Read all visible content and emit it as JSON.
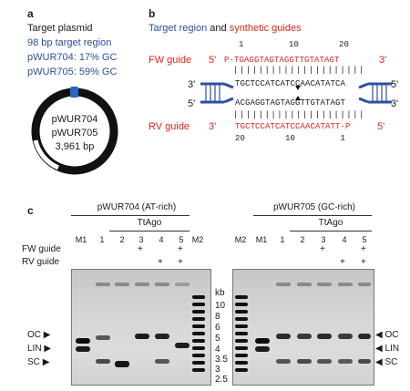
{
  "panel_a": {
    "label": "a",
    "title": "Target plasmid",
    "target_region": "98 bp target region",
    "gc_1": "pWUR704: 17% GC",
    "gc_2": "pWUR705: 59% GC",
    "plasmid_name_1": "pWUR704",
    "plasmid_name_2": "pWUR705",
    "plasmid_size": "3,961 bp"
  },
  "panel_b": {
    "label": "b",
    "title_part1": "Target region",
    "title_and": " and ",
    "title_part2": "synthetic guides",
    "fw_guide_label": "FW guide",
    "rv_guide_label": "RV guide",
    "fw_5prime": "5'",
    "fw_3prime": "3'",
    "rv_3prime": "3'",
    "rv_5prime": "5'",
    "target_left_3prime": "3'",
    "target_left_5prime": "5'",
    "target_right_5prime": "5'",
    "target_right_3prime": "3'",
    "fw_ticks_top": "1         10        20",
    "fw_seq": "P-TGAGGTAGTAGGTTGTATAGT",
    "fw_bars": "|||||||||||||||||||||",
    "target_top": "TGCTCCATCATCCAACATATCA",
    "target_bottom": "ACGAGGTAGTAGGTTGTATAGT",
    "rv_bars": "|||||||||||||||||||||",
    "rv_seq": "TGCTCCATCATCCAACATATT-P",
    "rv_ticks_bottom": "20        10         1"
  },
  "panel_c": {
    "label": "c",
    "gel_left": {
      "title": "pWUR704 (AT-rich)",
      "tt_ago": "TtAgo",
      "lanes": [
        "M1",
        "1",
        "2",
        "3",
        "4",
        "5",
        "M2"
      ]
    },
    "gel_right": {
      "title": "pWUR705 (GC-rich)",
      "tt_ago": "TtAgo",
      "lanes": [
        "M2",
        "M1",
        "1",
        "2",
        "3",
        "4",
        "5"
      ]
    },
    "fw_guide_row_label": "FW guide",
    "rv_guide_row_label": "RV guide",
    "plus": "+",
    "kb_label": "kb",
    "kb_values": [
      "10",
      "8",
      "6",
      "5",
      "4",
      "3.5",
      "3",
      "2.5"
    ],
    "left_markers": [
      "OC",
      "LIN",
      "SC"
    ],
    "right_markers": [
      "OC",
      "LIN",
      "SC"
    ]
  },
  "colors": {
    "blue": "#2b4fa2",
    "red": "#e1241b"
  }
}
